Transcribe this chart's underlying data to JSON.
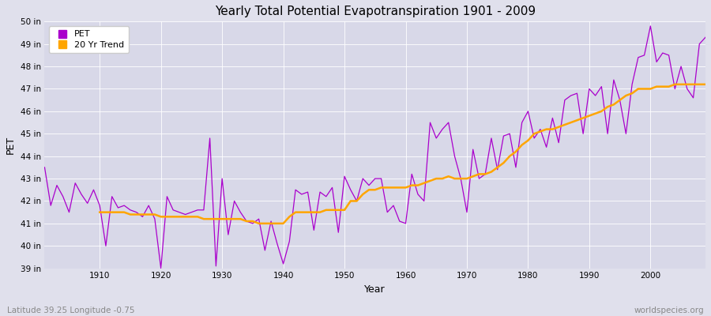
{
  "title": "Yearly Total Potential Evapotranspiration 1901 - 2009",
  "xlabel": "Year",
  "ylabel": "PET",
  "footnote_left": "Latitude 39.25 Longitude -0.75",
  "footnote_right": "worldspecies.org",
  "ylim": [
    39,
    50
  ],
  "yticks": [
    39,
    40,
    41,
    42,
    43,
    44,
    45,
    46,
    47,
    48,
    49,
    50
  ],
  "ytick_labels": [
    "39 in",
    "40 in",
    "41 in",
    "42 in",
    "43 in",
    "44 in",
    "45 in",
    "46 in",
    "47 in",
    "48 in",
    "49 in",
    "50 in"
  ],
  "xlim": [
    1901,
    2009
  ],
  "xticks": [
    1910,
    1920,
    1930,
    1940,
    1950,
    1960,
    1970,
    1980,
    1990,
    2000
  ],
  "pet_color": "#AA00CC",
  "trend_color": "#FFA500",
  "fig_bg_color": "#E0E0EC",
  "plot_bg_color": "#D8D8E8",
  "grid_color": "#FFFFFF",
  "legend_pet": "PET",
  "legend_trend": "20 Yr Trend",
  "years": [
    1901,
    1902,
    1903,
    1904,
    1905,
    1906,
    1907,
    1908,
    1909,
    1910,
    1911,
    1912,
    1913,
    1914,
    1915,
    1916,
    1917,
    1918,
    1919,
    1920,
    1921,
    1922,
    1923,
    1924,
    1925,
    1926,
    1927,
    1928,
    1929,
    1930,
    1931,
    1932,
    1933,
    1934,
    1935,
    1936,
    1937,
    1938,
    1939,
    1940,
    1941,
    1942,
    1943,
    1944,
    1945,
    1946,
    1947,
    1948,
    1949,
    1950,
    1951,
    1952,
    1953,
    1954,
    1955,
    1956,
    1957,
    1958,
    1959,
    1960,
    1961,
    1962,
    1963,
    1964,
    1965,
    1966,
    1967,
    1968,
    1969,
    1970,
    1971,
    1972,
    1973,
    1974,
    1975,
    1976,
    1977,
    1978,
    1979,
    1980,
    1981,
    1982,
    1983,
    1984,
    1985,
    1986,
    1987,
    1988,
    1989,
    1990,
    1991,
    1992,
    1993,
    1994,
    1995,
    1996,
    1997,
    1998,
    1999,
    2000,
    2001,
    2002,
    2003,
    2004,
    2005,
    2006,
    2007,
    2008,
    2009
  ],
  "pet_values": [
    43.5,
    41.8,
    42.7,
    42.2,
    41.5,
    42.8,
    42.3,
    41.9,
    42.5,
    41.8,
    40.0,
    42.2,
    41.7,
    41.8,
    41.6,
    41.5,
    41.3,
    41.8,
    41.2,
    39.0,
    42.2,
    41.6,
    41.5,
    41.4,
    41.5,
    41.6,
    41.6,
    44.8,
    39.1,
    43.0,
    40.5,
    42.0,
    41.5,
    41.1,
    41.0,
    41.2,
    39.8,
    41.1,
    40.1,
    39.2,
    40.2,
    42.5,
    42.3,
    42.4,
    40.7,
    42.4,
    42.2,
    42.6,
    40.6,
    43.1,
    42.5,
    42.0,
    43.0,
    42.7,
    43.0,
    43.0,
    41.5,
    41.8,
    41.1,
    41.0,
    43.2,
    42.3,
    42.0,
    45.5,
    44.8,
    45.2,
    45.5,
    44.0,
    43.0,
    41.5,
    44.3,
    43.0,
    43.2,
    44.8,
    43.4,
    44.9,
    45.0,
    43.5,
    45.5,
    46.0,
    44.8,
    45.2,
    44.4,
    45.7,
    44.6,
    46.5,
    46.7,
    46.8,
    45.0,
    47.0,
    46.7,
    47.1,
    45.0,
    47.4,
    46.5,
    45.0,
    47.2,
    48.4,
    48.5,
    49.8,
    48.2,
    48.6,
    48.5,
    47.0,
    48.0,
    47.0,
    46.6,
    49.0,
    49.3
  ],
  "trend_years": [
    1910,
    1911,
    1912,
    1913,
    1914,
    1915,
    1916,
    1917,
    1918,
    1919,
    1920,
    1921,
    1922,
    1923,
    1924,
    1925,
    1926,
    1927,
    1928,
    1929,
    1930,
    1931,
    1932,
    1933,
    1934,
    1935,
    1936,
    1937,
    1938,
    1939,
    1940,
    1941,
    1942,
    1943,
    1944,
    1945,
    1946,
    1947,
    1948,
    1949,
    1950,
    1951,
    1952,
    1953,
    1954,
    1955,
    1956,
    1957,
    1958,
    1959,
    1960,
    1961,
    1962,
    1963,
    1964,
    1965,
    1966,
    1967,
    1968,
    1969,
    1970,
    1971,
    1972,
    1973,
    1974,
    1975,
    1976,
    1977,
    1978,
    1979,
    1980,
    1981,
    1982,
    1983,
    1984,
    1985,
    1986,
    1987,
    1988,
    1989,
    1990,
    1991,
    1992,
    1993,
    1994,
    1995,
    1996,
    1997,
    1998,
    1999,
    2000,
    2001,
    2002,
    2003,
    2004,
    2005,
    2006,
    2007,
    2008,
    2009
  ],
  "trend_values": [
    41.5,
    41.5,
    41.5,
    41.5,
    41.5,
    41.4,
    41.4,
    41.4,
    41.4,
    41.4,
    41.3,
    41.3,
    41.3,
    41.3,
    41.3,
    41.3,
    41.3,
    41.2,
    41.2,
    41.2,
    41.2,
    41.2,
    41.2,
    41.2,
    41.1,
    41.1,
    41.0,
    41.0,
    41.0,
    41.0,
    41.0,
    41.3,
    41.5,
    41.5,
    41.5,
    41.5,
    41.5,
    41.6,
    41.6,
    41.6,
    41.6,
    42.0,
    42.0,
    42.3,
    42.5,
    42.5,
    42.6,
    42.6,
    42.6,
    42.6,
    42.6,
    42.7,
    42.7,
    42.8,
    42.9,
    43.0,
    43.0,
    43.1,
    43.0,
    43.0,
    43.0,
    43.1,
    43.2,
    43.2,
    43.3,
    43.5,
    43.7,
    44.0,
    44.2,
    44.5,
    44.7,
    45.0,
    45.1,
    45.2,
    45.2,
    45.3,
    45.4,
    45.5,
    45.6,
    45.7,
    45.8,
    45.9,
    46.0,
    46.2,
    46.3,
    46.5,
    46.7,
    46.8,
    47.0,
    47.0,
    47.0,
    47.1,
    47.1,
    47.1,
    47.2,
    47.2,
    47.2,
    47.2,
    47.2,
    47.2
  ]
}
